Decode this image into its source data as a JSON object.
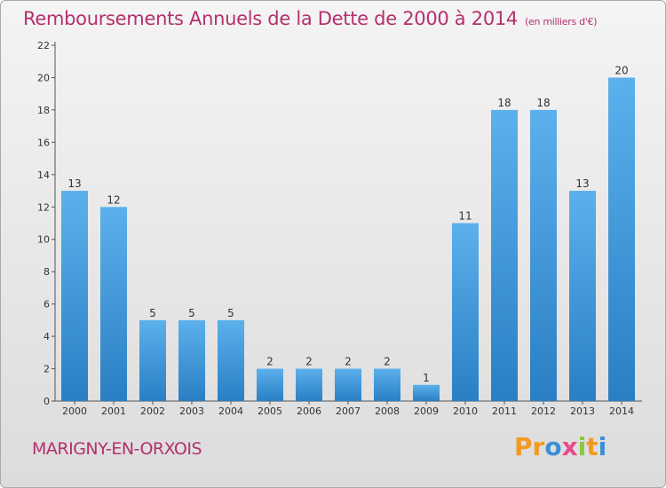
{
  "chart_data": {
    "type": "bar",
    "title": "Remboursements Annuels de la Dette de 2000 à 2014",
    "subtitle": "(en milliers d'€)",
    "categories": [
      "2000",
      "2001",
      "2002",
      "2003",
      "2004",
      "2005",
      "2006",
      "2007",
      "2008",
      "2009",
      "2010",
      "2011",
      "2012",
      "2013",
      "2014"
    ],
    "values": [
      13,
      12,
      5,
      5,
      5,
      2,
      2,
      2,
      2,
      1,
      11,
      18,
      18,
      13,
      20
    ],
    "ylim": [
      0,
      22
    ],
    "yticks": [
      0,
      2,
      4,
      6,
      8,
      10,
      12,
      14,
      16,
      18,
      20,
      22
    ],
    "grid": false,
    "bar_color": "#3f98da"
  },
  "footer": {
    "commune": "MARIGNY-EN-ORXOIS",
    "logo": {
      "p1": "Pr",
      "p2": "o",
      "p3": "x",
      "p4": "i",
      "p5": "t",
      "p6": "i"
    }
  }
}
